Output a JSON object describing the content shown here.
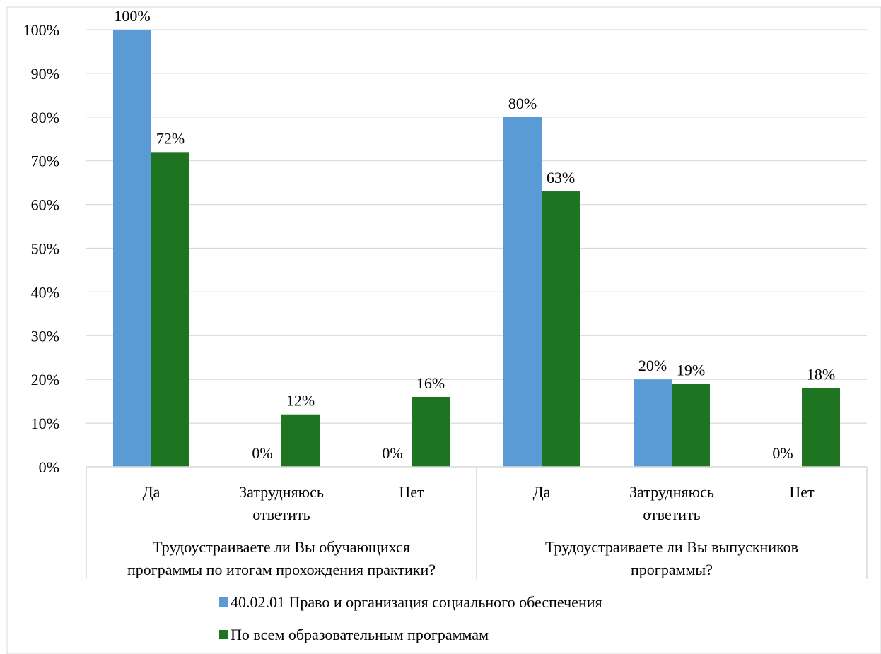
{
  "chart_data": {
    "type": "bar",
    "title": "",
    "xlabel": "",
    "ylabel": "",
    "ylim": [
      0,
      100
    ],
    "y_ticks": [
      "0%",
      "10%",
      "20%",
      "30%",
      "40%",
      "50%",
      "60%",
      "70%",
      "80%",
      "90%",
      "100%"
    ],
    "grid": true,
    "legend_position": "bottom",
    "groups": [
      {
        "label_lines": [
          "Трудоустраиваете ли Вы обучающихся",
          "программы по итогам прохождения практики?"
        ],
        "categories": [
          {
            "label_lines": [
              "Да"
            ]
          },
          {
            "label_lines": [
              "Затрудняюсь",
              "ответить"
            ]
          },
          {
            "label_lines": [
              "Нет"
            ]
          }
        ]
      },
      {
        "label_lines": [
          "Трудоустраиваете ли Вы выпускников",
          "программы?"
        ],
        "categories": [
          {
            "label_lines": [
              "Да"
            ]
          },
          {
            "label_lines": [
              "Затрудняюсь",
              "ответить"
            ]
          },
          {
            "label_lines": [
              "Нет"
            ]
          }
        ]
      }
    ],
    "series": [
      {
        "name": "40.02.01 Право и организация социального обеспечения",
        "color": "#5B9BD5",
        "values": [
          100,
          0,
          0,
          80,
          20,
          0
        ],
        "data_labels": [
          "100%",
          "0%",
          "0%",
          "80%",
          "20%",
          "0%"
        ]
      },
      {
        "name": "По всем образовательным программам",
        "color": "#1E7421",
        "values": [
          72,
          12,
          16,
          63,
          19,
          18
        ],
        "data_labels": [
          "72%",
          "12%",
          "16%",
          "63%",
          "19%",
          "18%"
        ]
      }
    ]
  }
}
